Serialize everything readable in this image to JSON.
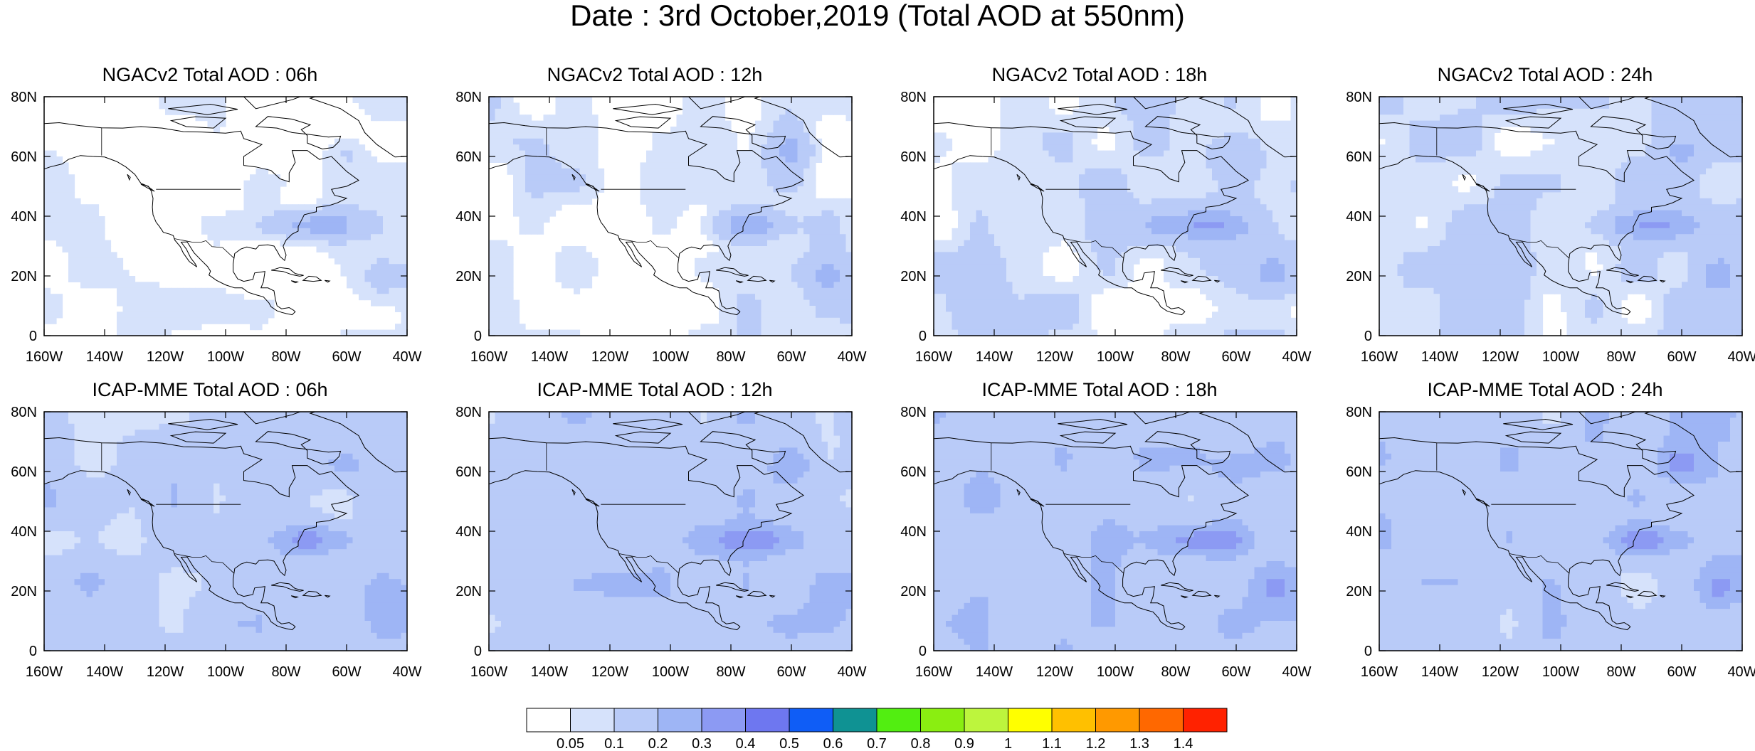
{
  "figure_title": "Date : 3rd October,2019 (Total AOD at 550nm)",
  "chart_data": {
    "type": "heatmap",
    "variable": "Total AOD at 550nm",
    "date": "3rd October,2019",
    "lon_range": [
      -160,
      -40
    ],
    "lat_range": [
      0,
      80
    ],
    "x_tick_labels": [
      "160W",
      "140W",
      "120W",
      "100W",
      "80W",
      "60W",
      "40W"
    ],
    "y_tick_labels": [
      "0",
      "20N",
      "40N",
      "60N",
      "80N"
    ],
    "colorbar": {
      "levels": [
        "0.05",
        "0.1",
        "0.2",
        "0.3",
        "0.4",
        "0.5",
        "0.6",
        "0.7",
        "0.8",
        "0.9",
        "1",
        "1.1",
        "1.2",
        "1.3",
        "1.4"
      ],
      "colors": [
        "#ffffff",
        "#d6e2fb",
        "#b9cbf8",
        "#9eb5f5",
        "#8c9af3",
        "#6e77f0",
        "#0f5df6",
        "#0f9293",
        "#52ee11",
        "#8aee11",
        "#bdf53d",
        "#ffff00",
        "#ffc000",
        "#ff9900",
        "#ff6800",
        "#ff2200"
      ]
    },
    "panels": [
      {
        "title": "NGACv2 Total AOD : 06h",
        "model": "NGACv2",
        "lead": "06h",
        "mean_level": 0.03
      },
      {
        "title": "NGACv2 Total AOD : 12h",
        "model": "NGACv2",
        "lead": "12h",
        "mean_level": 0.05
      },
      {
        "title": "NGACv2 Total AOD : 18h",
        "model": "NGACv2",
        "lead": "18h",
        "mean_level": 0.07
      },
      {
        "title": "NGACv2 Total AOD : 24h",
        "model": "NGACv2",
        "lead": "24h",
        "mean_level": 0.08
      },
      {
        "title": "ICAP-MME Total AOD : 06h",
        "model": "ICAP-MME",
        "lead": "06h",
        "mean_level": 0.14
      },
      {
        "title": "ICAP-MME Total AOD : 12h",
        "model": "ICAP-MME",
        "lead": "12h",
        "mean_level": 0.15
      },
      {
        "title": "ICAP-MME Total AOD : 18h",
        "model": "ICAP-MME",
        "lead": "18h",
        "mean_level": 0.15
      },
      {
        "title": "ICAP-MME Total AOD : 24h",
        "model": "ICAP-MME",
        "lead": "24h",
        "mean_level": 0.15
      }
    ]
  }
}
